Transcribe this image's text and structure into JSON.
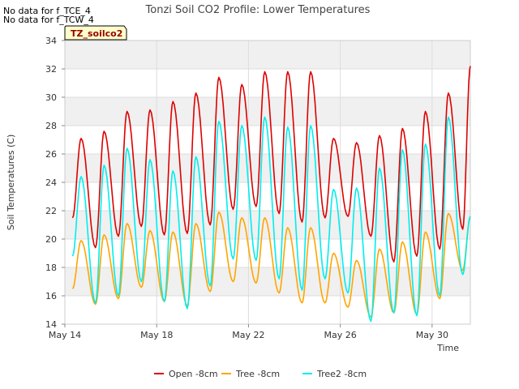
{
  "notes": [
    "No data for f_TCE_4",
    "No data for f_TCW_4"
  ],
  "chart_data": {
    "type": "line",
    "title": "Tonzi Soil CO2 Profile: Lower Temperatures",
    "badge": "TZ_soilco2",
    "xlabel": "Time",
    "ylabel": "Soil Temperatures (C)",
    "ylim": [
      14,
      34
    ],
    "yticks": [
      14,
      16,
      18,
      20,
      22,
      24,
      26,
      28,
      30,
      32,
      34
    ],
    "xlim": [
      "2024-05-14",
      "2024-05-31T16:00"
    ],
    "xticks": [
      {
        "value": "2024-05-14",
        "label": "May 14"
      },
      {
        "value": "2024-05-18",
        "label": "May 18"
      },
      {
        "value": "2024-05-22",
        "label": "May 22"
      },
      {
        "value": "2024-05-26",
        "label": "May 26"
      },
      {
        "value": "2024-05-30",
        "label": "May 30"
      }
    ],
    "x": [
      "2024-05-14T08:00",
      "2024-05-14T17:00",
      "2024-05-15T08:00",
      "2024-05-15T17:00",
      "2024-05-16T08:00",
      "2024-05-16T17:00",
      "2024-05-17T08:00",
      "2024-05-17T17:00",
      "2024-05-18T08:00",
      "2024-05-18T17:00",
      "2024-05-19T08:00",
      "2024-05-19T17:00",
      "2024-05-20T08:00",
      "2024-05-20T17:00",
      "2024-05-21T08:00",
      "2024-05-21T17:00",
      "2024-05-22T08:00",
      "2024-05-22T17:00",
      "2024-05-23T08:00",
      "2024-05-23T17:00",
      "2024-05-24T08:00",
      "2024-05-24T17:00",
      "2024-05-25T08:00",
      "2024-05-25T17:00",
      "2024-05-26T08:00",
      "2024-05-26T17:00",
      "2024-05-27T08:00",
      "2024-05-27T17:00",
      "2024-05-28T08:00",
      "2024-05-28T17:00",
      "2024-05-29T08:00",
      "2024-05-29T17:00",
      "2024-05-30T08:00",
      "2024-05-30T17:00",
      "2024-05-31T08:00",
      "2024-05-31T16:00"
    ],
    "grid": true,
    "background_bands": true,
    "legend": "bottom",
    "series": [
      {
        "name": "Open -8cm",
        "color": "#dd0000",
        "values": [
          21.5,
          27.1,
          19.4,
          27.6,
          20.2,
          29.0,
          20.9,
          29.1,
          20.3,
          29.7,
          20.4,
          30.3,
          21.0,
          31.4,
          22.1,
          30.9,
          22.3,
          31.8,
          21.8,
          31.8,
          21.2,
          31.8,
          21.5,
          27.1,
          21.6,
          26.8,
          20.2,
          27.3,
          18.4,
          27.8,
          18.8,
          29.0,
          19.3,
          30.3,
          20.7,
          32.2
        ]
      },
      {
        "name": "Tree -8cm",
        "color": "#ffa500",
        "values": [
          16.5,
          19.9,
          15.4,
          20.3,
          15.8,
          21.1,
          16.6,
          20.6,
          15.6,
          20.5,
          15.3,
          21.1,
          16.3,
          21.9,
          17.0,
          21.5,
          16.9,
          21.5,
          16.2,
          20.8,
          15.5,
          20.8,
          15.5,
          19.0,
          15.2,
          18.5,
          14.5,
          19.3,
          14.8,
          19.8,
          14.7,
          20.5,
          15.8,
          21.8,
          17.8,
          21.6
        ]
      },
      {
        "name": "Tree2 -8cm",
        "color": "#00eeee",
        "values": [
          18.8,
          24.4,
          15.5,
          25.2,
          16.0,
          26.4,
          17.0,
          25.6,
          15.6,
          24.8,
          15.1,
          25.8,
          16.7,
          28.3,
          18.6,
          28.0,
          18.5,
          28.6,
          17.2,
          27.9,
          16.4,
          28.0,
          17.2,
          23.5,
          16.2,
          23.6,
          14.2,
          25.0,
          14.8,
          26.3,
          14.6,
          26.7,
          16.0,
          28.6,
          17.5,
          21.6
        ]
      }
    ]
  }
}
